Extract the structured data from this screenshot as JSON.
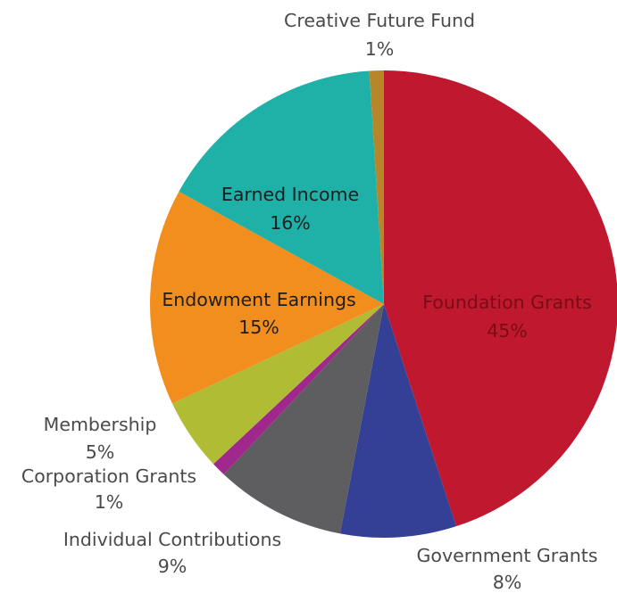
{
  "chart_data": {
    "type": "pie",
    "title": "",
    "start_angle_deg": 0,
    "direction": "clockwise",
    "slices": [
      {
        "label": "Foundation Grants",
        "value": 45,
        "value_label": "45%",
        "color": "#c0192f"
      },
      {
        "label": "Government Grants",
        "value": 8,
        "value_label": "8%",
        "color": "#343f96"
      },
      {
        "label": "Individual Contributions",
        "value": 9,
        "value_label": "9%",
        "color": "#5e5e60"
      },
      {
        "label": "Corporation Grants",
        "value": 1,
        "value_label": "1%",
        "color": "#a0278c"
      },
      {
        "label": "Membership",
        "value": 5,
        "value_label": "5%",
        "color": "#b1bc35"
      },
      {
        "label": "Endowment Earnings",
        "value": 15,
        "value_label": "15%",
        "color": "#f28e1e"
      },
      {
        "label": "Earned Income",
        "value": 16,
        "value_label": "16%",
        "color": "#1fb0a7"
      },
      {
        "label": "Creative Future Fund",
        "value": 1,
        "value_label": "1%",
        "color": "#b8862a"
      }
    ]
  }
}
